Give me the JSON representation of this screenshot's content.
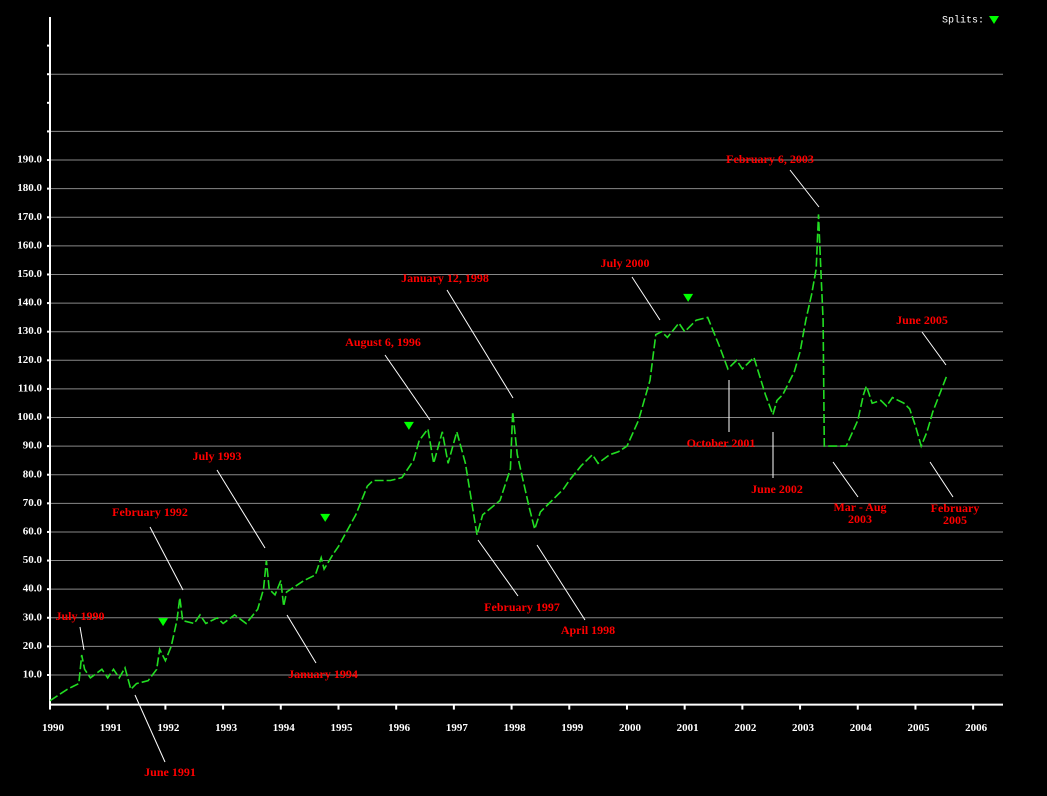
{
  "chart_data": {
    "type": "line",
    "xlim": [
      1990,
      2006.5
    ],
    "ylim": [
      0,
      240
    ],
    "xticks": [
      1990,
      1991,
      1992,
      1993,
      1994,
      1995,
      1996,
      1997,
      1998,
      1999,
      2000,
      2001,
      2002,
      2003,
      2004,
      2005,
      2006
    ],
    "yticks": [
      {
        "value": 10,
        "label": "10.0"
      },
      {
        "value": 20,
        "label": "20.0"
      },
      {
        "value": 30,
        "label": "30.0"
      },
      {
        "value": 40,
        "label": "40.0"
      },
      {
        "value": 50,
        "label": "50.0"
      },
      {
        "value": 60,
        "label": "60.0"
      },
      {
        "value": 70,
        "label": "70.0"
      },
      {
        "value": 80,
        "label": "80.0"
      },
      {
        "value": 90,
        "label": "90.0"
      },
      {
        "value": 100,
        "label": "100.0"
      },
      {
        "value": 110,
        "label": "110.0"
      },
      {
        "value": 120,
        "label": "120.0"
      },
      {
        "value": 130,
        "label": "130.0"
      },
      {
        "value": 140,
        "label": "140.0"
      },
      {
        "value": 150,
        "label": "150.0"
      },
      {
        "value": 160,
        "label": "160.0"
      },
      {
        "value": 170,
        "label": "170.0"
      },
      {
        "value": 180,
        "label": "180.0"
      },
      {
        "value": 190,
        "label": "190.0"
      }
    ],
    "minor_yticks": [
      200,
      210,
      220,
      230
    ],
    "grid": true,
    "color": "#22dd22",
    "x": [
      1990.0,
      1990.3,
      1990.4,
      1990.5,
      1990.55,
      1990.6,
      1990.7,
      1990.9,
      1991.0,
      1991.1,
      1991.2,
      1991.3,
      1991.4,
      1991.5,
      1991.7,
      1991.85,
      1991.9,
      1992.0,
      1992.1,
      1992.2,
      1992.25,
      1992.3,
      1992.5,
      1992.6,
      1992.7,
      1992.9,
      1993.0,
      1993.2,
      1993.4,
      1993.6,
      1993.7,
      1993.75,
      1993.8,
      1993.9,
      1994.0,
      1994.05,
      1994.1,
      1994.4,
      1994.6,
      1994.7,
      1994.75,
      1994.9,
      1995.0,
      1995.3,
      1995.5,
      1995.6,
      1995.9,
      1996.1,
      1996.3,
      1996.4,
      1996.55,
      1996.65,
      1996.8,
      1996.9,
      1997.05,
      1997.2,
      1997.4,
      1997.5,
      1997.8,
      1997.98,
      1998.02,
      1998.1,
      1998.3,
      1998.4,
      1998.5,
      1998.7,
      1998.9,
      1999.0,
      1999.2,
      1999.4,
      1999.5,
      1999.7,
      1999.85,
      2000.0,
      2000.2,
      2000.4,
      2000.5,
      2000.6,
      2000.7,
      2000.9,
      2001.0,
      2001.2,
      2001.4,
      2001.6,
      2001.75,
      2001.9,
      2002.0,
      2002.2,
      2002.4,
      2002.53,
      2002.6,
      2002.7,
      2002.9,
      2003.0,
      2003.1,
      2003.2,
      2003.28,
      2003.32,
      2003.36,
      2003.4,
      2003.42,
      2003.6,
      2003.8,
      2004.0,
      2004.1,
      2004.15,
      2004.25,
      2004.4,
      2004.5,
      2004.6,
      2004.8,
      2004.9,
      2005.0,
      2005.1,
      2005.2,
      2005.3,
      2005.55
    ],
    "values": [
      1,
      5,
      6,
      7,
      17,
      12,
      9,
      12,
      9,
      12,
      9,
      12.5,
      5,
      7,
      8,
      12,
      19,
      15,
      20,
      29,
      37,
      29,
      28,
      31,
      28,
      30,
      28,
      31,
      28,
      33,
      40,
      50,
      40,
      38,
      43,
      34,
      39,
      43,
      45,
      51,
      47,
      52,
      55,
      66,
      76,
      78,
      78,
      79,
      85,
      92,
      96,
      84,
      95,
      84,
      95,
      84,
      59,
      66,
      71,
      82,
      102,
      87,
      69,
      61,
      67,
      71,
      75,
      78,
      83,
      87,
      84,
      87,
      88,
      90,
      99,
      113,
      129,
      130,
      128,
      133,
      130,
      134,
      135,
      125,
      117,
      120,
      117,
      121,
      108,
      101,
      106,
      108,
      116,
      123,
      134,
      143,
      152,
      171,
      152,
      134,
      90,
      90,
      90,
      99,
      108,
      111,
      105,
      106,
      104,
      107,
      105,
      103,
      97,
      90,
      95,
      102,
      115
    ],
    "splits": {
      "label": "Splits:",
      "x": [
        1991.96,
        1994.77,
        1996.22,
        2001.06
      ],
      "y": [
        28.5,
        64.9,
        97.1,
        141.8
      ],
      "color": "#00ff00"
    },
    "annotations": [
      [
        "July 1990"
      ],
      [
        "June 1991"
      ],
      [
        "February 1992"
      ],
      [
        "July 1993"
      ],
      [
        "January 1994"
      ],
      [
        "August 6, 1996"
      ],
      [
        "January 12, 1998"
      ],
      [
        "February 1997"
      ],
      [
        "April 1998"
      ],
      [
        "July 2000"
      ],
      [
        "October 2001"
      ],
      [
        "June 2002"
      ],
      [
        "February 6, 2003"
      ],
      [
        "Mar - Aug",
        "2003"
      ],
      [
        "February",
        "2005"
      ],
      [
        "June 2005"
      ]
    ]
  }
}
